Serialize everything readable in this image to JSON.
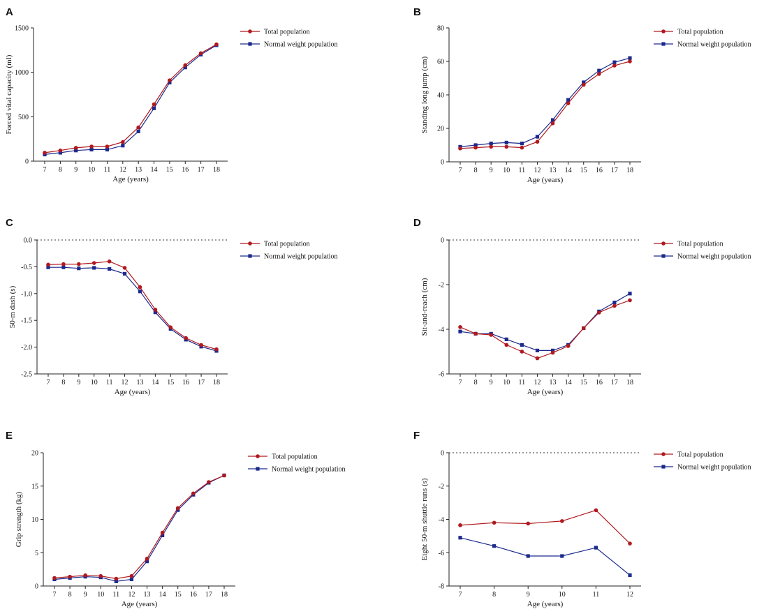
{
  "colors": {
    "total": "#b0191e",
    "normal": "#1c2a8c"
  },
  "legend": {
    "total": "Total population",
    "normal": "Normal weight population"
  },
  "chart_data": [
    {
      "panel": "A",
      "type": "line",
      "xlabel": "Age (years)",
      "ylabel": "Forced vital capacity (ml)",
      "x": [
        7,
        8,
        9,
        10,
        11,
        12,
        13,
        14,
        15,
        16,
        17,
        18
      ],
      "xticks": [
        "7",
        "8",
        "9",
        "10",
        "11",
        "12",
        "13",
        "14",
        "15",
        "16",
        "17",
        "18"
      ],
      "ylim": [
        0,
        1500
      ],
      "yticks": [
        0,
        500,
        1000,
        1500
      ],
      "yticklabels": [
        "0",
        "500",
        "1000",
        "1500"
      ],
      "zero_line": false,
      "series": [
        {
          "name": "Total population",
          "key": "total",
          "values": [
            95,
            120,
            150,
            165,
            165,
            215,
            380,
            640,
            910,
            1080,
            1215,
            1315
          ]
        },
        {
          "name": "Normal weight population",
          "key": "normal",
          "values": [
            75,
            95,
            120,
            130,
            130,
            175,
            335,
            595,
            885,
            1055,
            1200,
            1305
          ]
        }
      ]
    },
    {
      "panel": "B",
      "type": "line",
      "xlabel": "Age (years)",
      "ylabel": "Standing long jump (cm)",
      "x": [
        7,
        8,
        9,
        10,
        11,
        12,
        13,
        14,
        15,
        16,
        17,
        18
      ],
      "xticks": [
        "7",
        "8",
        "9",
        "10",
        "11",
        "12",
        "13",
        "14",
        "15",
        "16",
        "17",
        "18"
      ],
      "ylim": [
        0,
        80
      ],
      "yticks": [
        0,
        20,
        40,
        60,
        80
      ],
      "yticklabels": [
        "0",
        "20",
        "40",
        "60",
        "80"
      ],
      "zero_line": false,
      "series": [
        {
          "name": "Total population",
          "key": "total",
          "values": [
            8,
            8.5,
            9,
            9,
            8.5,
            12,
            23,
            35,
            46,
            52.5,
            57.5,
            60
          ]
        },
        {
          "name": "Normal weight population",
          "key": "normal",
          "values": [
            9,
            10,
            11,
            11.5,
            11,
            15,
            25,
            37,
            47.5,
            54.5,
            59.5,
            62
          ]
        }
      ]
    },
    {
      "panel": "C",
      "type": "line",
      "xlabel": "Age (years)",
      "ylabel": "50-m dash (s)",
      "x": [
        7,
        8,
        9,
        10,
        11,
        12,
        13,
        14,
        15,
        16,
        17,
        18
      ],
      "xticks": [
        "7",
        "8",
        "9",
        "10",
        "11",
        "12",
        "13",
        "14",
        "15",
        "16",
        "17",
        "18"
      ],
      "ylim": [
        -2.5,
        0
      ],
      "yticks": [
        0,
        -0.5,
        -1,
        -1.5,
        -2,
        -2.5
      ],
      "yticklabels": [
        "0.0",
        "-0.5",
        "-1.0",
        "-1.5",
        "-2.0",
        "-2.5"
      ],
      "zero_line": true,
      "series": [
        {
          "name": "Total population",
          "key": "total",
          "values": [
            -0.46,
            -0.45,
            -0.45,
            -0.43,
            -0.4,
            -0.52,
            -0.88,
            -1.3,
            -1.63,
            -1.83,
            -1.96,
            -2.04
          ]
        },
        {
          "name": "Normal weight population",
          "key": "normal",
          "values": [
            -0.51,
            -0.51,
            -0.53,
            -0.52,
            -0.54,
            -0.63,
            -0.96,
            -1.35,
            -1.66,
            -1.86,
            -1.99,
            -2.07
          ]
        }
      ]
    },
    {
      "panel": "D",
      "type": "line",
      "xlabel": "Age (years)",
      "ylabel": "Sit-and-reach (cm)",
      "x": [
        7,
        8,
        9,
        10,
        11,
        12,
        13,
        14,
        15,
        16,
        17,
        18
      ],
      "xticks": [
        "7",
        "8",
        "9",
        "10",
        "11",
        "12",
        "13",
        "14",
        "15",
        "16",
        "17",
        "18"
      ],
      "ylim": [
        -6,
        0
      ],
      "yticks": [
        0,
        -2,
        -4,
        -6
      ],
      "yticklabels": [
        "0",
        "-2",
        "-4",
        "-6"
      ],
      "zero_line": true,
      "series": [
        {
          "name": "Total population",
          "key": "total",
          "values": [
            -3.9,
            -4.2,
            -4.25,
            -4.7,
            -5.0,
            -5.3,
            -5.05,
            -4.75,
            -3.95,
            -3.25,
            -2.95,
            -2.7
          ]
        },
        {
          "name": "Normal weight population",
          "key": "normal",
          "values": [
            -4.1,
            -4.2,
            -4.2,
            -4.45,
            -4.7,
            -4.95,
            -4.95,
            -4.7,
            -3.95,
            -3.2,
            -2.8,
            -2.4
          ]
        }
      ]
    },
    {
      "panel": "E",
      "type": "line",
      "xlabel": "Age (years)",
      "ylabel": "Grip strength (kg)",
      "x": [
        7,
        8,
        9,
        10,
        11,
        12,
        13,
        14,
        15,
        16,
        17,
        18
      ],
      "xticks": [
        "7",
        "8",
        "9",
        "10",
        "11",
        "12",
        "13",
        "14",
        "15",
        "16",
        "17",
        "18"
      ],
      "ylim": [
        0,
        20
      ],
      "yticks": [
        0,
        5,
        10,
        15,
        20
      ],
      "yticklabels": [
        "0",
        "5",
        "10",
        "15",
        "20"
      ],
      "zero_line": false,
      "series": [
        {
          "name": "Total population",
          "key": "total",
          "values": [
            1.2,
            1.4,
            1.6,
            1.5,
            1.1,
            1.5,
            4.1,
            8.0,
            11.7,
            13.9,
            15.6,
            16.6
          ]
        },
        {
          "name": "Normal weight population",
          "key": "normal",
          "values": [
            1.0,
            1.2,
            1.4,
            1.3,
            0.7,
            1.0,
            3.7,
            7.6,
            11.4,
            13.7,
            15.5,
            16.6
          ]
        }
      ]
    },
    {
      "panel": "F",
      "type": "line",
      "xlabel": "Age (years)",
      "ylabel": "Eight 50-m shuttle runs (s)",
      "x": [
        7,
        8,
        9,
        10,
        11,
        12
      ],
      "xticks": [
        "7",
        "8",
        "9",
        "10",
        "11",
        "12"
      ],
      "ylim": [
        -8,
        0
      ],
      "yticks": [
        0,
        -2,
        -4,
        -6,
        -8
      ],
      "yticklabels": [
        "0",
        "-2",
        "-4",
        "-6",
        "-8"
      ],
      "zero_line": true,
      "series": [
        {
          "name": "Total population",
          "key": "total",
          "values": [
            -4.35,
            -4.2,
            -4.25,
            -4.1,
            -3.45,
            -5.45
          ]
        },
        {
          "name": "Normal weight population",
          "key": "normal",
          "values": [
            -5.1,
            -5.6,
            -6.2,
            -6.2,
            -5.7,
            -7.35
          ]
        }
      ]
    }
  ]
}
